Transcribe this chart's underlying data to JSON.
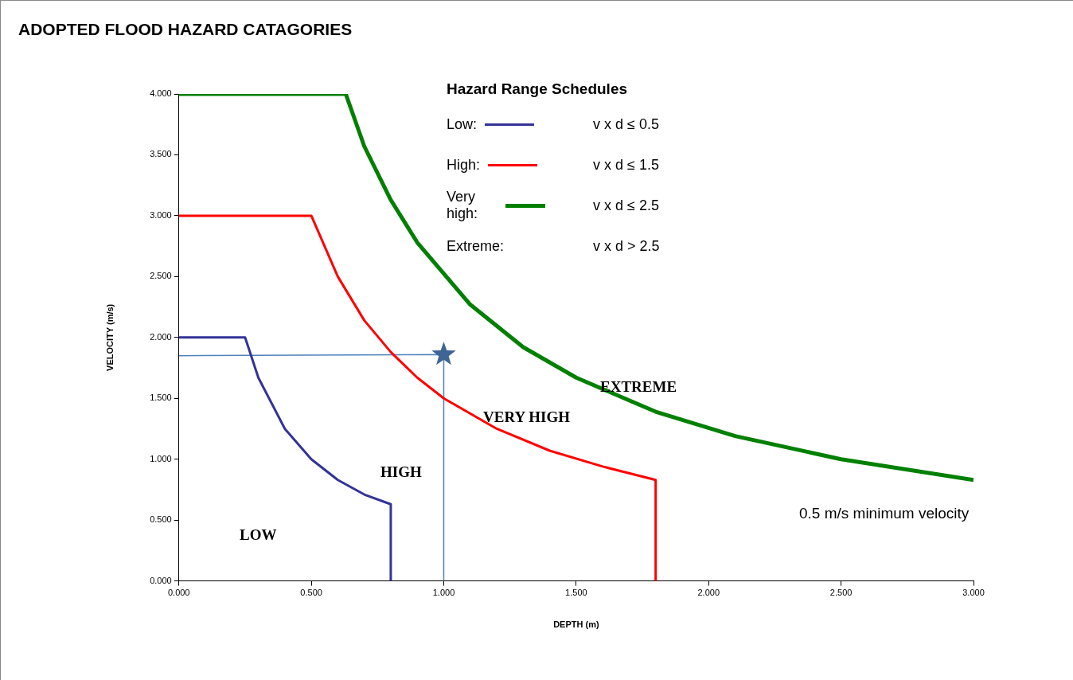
{
  "chart_data": {
    "type": "line",
    "title": "ADOPTED FLOOD HAZARD CATAGORIES",
    "xlabel": "DEPTH (m)",
    "ylabel": "VELOCITY (m/s)",
    "legend_title": "Hazard Range Schedules",
    "legend": "top",
    "grid": false,
    "marker": "none",
    "xlim": [
      0,
      3
    ],
    "ylim": [
      0,
      4
    ],
    "xticks": [
      {
        "value": 0,
        "label": "0.000"
      },
      {
        "value": 0.5,
        "label": "0.500"
      },
      {
        "value": 1,
        "label": "1.000"
      },
      {
        "value": 1.5,
        "label": "1.500"
      },
      {
        "value": 2,
        "label": "2.000"
      },
      {
        "value": 2.5,
        "label": "2.500"
      },
      {
        "value": 3,
        "label": "3.000"
      }
    ],
    "yticks": [
      {
        "value": 0,
        "label": "0.000"
      },
      {
        "value": 0.5,
        "label": "0.500"
      },
      {
        "value": 1,
        "label": "1.000"
      },
      {
        "value": 1.5,
        "label": "1.500"
      },
      {
        "value": 2,
        "label": "2.000"
      },
      {
        "value": 2.5,
        "label": "2.500"
      },
      {
        "value": 3,
        "label": "3.000"
      },
      {
        "value": 3.5,
        "label": "3.500"
      },
      {
        "value": 4,
        "label": "4.000"
      }
    ],
    "series": [
      {
        "name": "Low:",
        "color": "#333399",
        "x": [
          0,
          0.25,
          0.3,
          0.4,
          0.5,
          0.6,
          0.7,
          0.8,
          0.8
        ],
        "values": [
          2,
          2,
          1.67,
          1.25,
          1,
          0.83,
          0.71,
          0.63,
          0
        ]
      },
      {
        "name": "High:",
        "color": "#ff0000",
        "x": [
          0,
          0.5,
          0.6,
          0.7,
          0.8,
          0.9,
          1,
          1.2,
          1.4,
          1.6,
          1.8,
          1.8
        ],
        "values": [
          3,
          3,
          2.5,
          2.14,
          1.88,
          1.67,
          1.5,
          1.25,
          1.07,
          0.94,
          0.83,
          0
        ]
      },
      {
        "name": "Very high:",
        "color": "#008000",
        "x": [
          0,
          0.63,
          0.7,
          0.8,
          0.9,
          1.1,
          1.3,
          1.5,
          1.8,
          2.1,
          2.5,
          3
        ],
        "values": [
          4,
          4,
          3.57,
          3.13,
          2.78,
          2.27,
          1.92,
          1.67,
          1.39,
          1.19,
          1,
          0.83
        ]
      },
      {
        "type": "line",
        "color": "#4f81bd",
        "x": [
          0,
          1,
          1
        ],
        "values": [
          1.85,
          1.86,
          0
        ]
      },
      {
        "type": "scatter",
        "marker": "star",
        "color": "#3f6496",
        "x": [
          1
        ],
        "values": [
          1.86
        ]
      }
    ],
    "annotations": [
      "v x d ≤ 0.5",
      "v x d ≤ 1.5",
      "v x d ≤ 2.5",
      "Extreme:",
      "v x d > 2.5",
      "LOW",
      "HIGH",
      "VERY HIGH",
      "EXTREME",
      "0.5 m/s minimum velocity"
    ]
  }
}
